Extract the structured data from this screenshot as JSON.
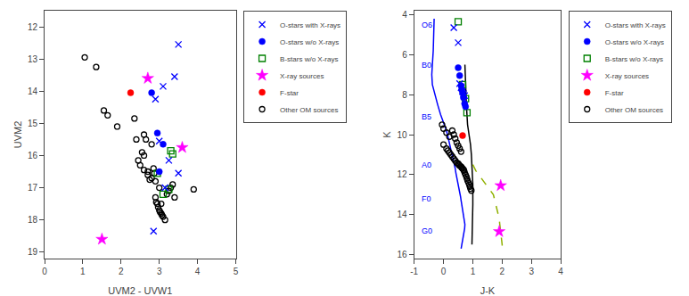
{
  "chart_data": [
    {
      "type": "scatter",
      "xlabel": "UVM2 - UVW1",
      "ylabel": "UVM2",
      "xlim": [
        0,
        5
      ],
      "ylim": [
        19.2,
        11.5
      ],
      "xticks": [
        0,
        1,
        2,
        3,
        4,
        5
      ],
      "yticks": [
        12,
        13,
        14,
        15,
        16,
        17,
        18,
        19
      ],
      "grid": false,
      "legend": "right",
      "series": [
        {
          "name": "O-stars with X-rays",
          "color": "blue",
          "marker": "x",
          "x": [
            3.5,
            3.4,
            3.1,
            2.9,
            3.0,
            3.25,
            3.5,
            3.15,
            2.85
          ],
          "values": [
            12.55,
            13.55,
            13.85,
            14.25,
            15.55,
            16.15,
            16.55,
            17.0,
            18.35
          ]
        },
        {
          "name": "O-stars w/o X-rays",
          "color": "blue",
          "marker": "circle",
          "x": [
            2.8,
            2.95,
            3.1,
            3.0
          ],
          "values": [
            14.05,
            15.3,
            15.65,
            16.5
          ]
        },
        {
          "name": "B-stars w/o X-rays",
          "color": "green",
          "marker": "square-open",
          "x": [
            3.3,
            3.35,
            2.95,
            3.25,
            3.1
          ],
          "values": [
            15.85,
            15.95,
            16.55,
            17.05,
            17.2
          ]
        },
        {
          "name": "X-ray sources",
          "color": "magenta",
          "marker": "star",
          "x": [
            1.5,
            2.7,
            3.6
          ],
          "values": [
            18.6,
            13.6,
            15.75
          ]
        },
        {
          "name": "F-star",
          "color": "red",
          "marker": "circle",
          "x": [
            2.25
          ],
          "values": [
            14.05
          ]
        },
        {
          "name": "Other OM sources",
          "color": "black",
          "marker": "circle-open",
          "x": [
            1.05,
            1.35,
            1.55,
            1.65,
            1.9,
            2.35,
            2.4,
            2.55,
            2.6,
            2.7,
            2.75,
            2.8,
            2.85,
            2.87,
            2.9,
            2.92,
            2.95,
            2.97,
            3.0,
            3.02,
            3.05,
            3.07,
            3.1,
            3.15,
            3.2,
            3.25,
            3.3,
            3.35,
            3.4,
            3.9,
            2.45,
            2.5,
            2.6,
            2.7,
            2.8,
            2.9,
            3.0,
            3.05,
            2.6,
            2.65
          ],
          "values": [
            12.95,
            13.25,
            14.6,
            14.75,
            15.1,
            14.85,
            15.5,
            15.9,
            16.0,
            16.6,
            16.75,
            15.65,
            16.4,
            16.55,
            17.3,
            17.45,
            17.5,
            17.6,
            17.7,
            17.75,
            17.8,
            17.85,
            17.9,
            18.0,
            17.2,
            17.1,
            17.0,
            16.9,
            17.3,
            17.05,
            16.15,
            16.3,
            16.45,
            16.5,
            16.7,
            16.8,
            17.0,
            17.5,
            15.35,
            15.5
          ]
        }
      ]
    },
    {
      "type": "scatter",
      "xlabel": "J-K",
      "ylabel": "K",
      "xlim": [
        -1,
        4
      ],
      "ylim": [
        16.2,
        3.8
      ],
      "xticks": [
        -1,
        0,
        1,
        2,
        3,
        4
      ],
      "yticks": [
        4,
        6,
        8,
        10,
        12,
        14,
        16
      ],
      "grid": false,
      "legend": "right",
      "annotations": [
        {
          "x": -0.82,
          "y": 4.5,
          "text": "O6",
          "color": "blue"
        },
        {
          "x": -0.82,
          "y": 6.5,
          "text": "B0",
          "color": "blue"
        },
        {
          "x": -0.82,
          "y": 9.1,
          "text": "B5",
          "color": "blue"
        },
        {
          "x": -0.82,
          "y": 11.5,
          "text": "A0",
          "color": "blue"
        },
        {
          "x": -0.82,
          "y": 13.2,
          "text": "F0",
          "color": "blue"
        },
        {
          "x": -0.82,
          "y": 14.8,
          "text": "G0",
          "color": "blue"
        }
      ],
      "series": [
        {
          "type": "line",
          "color": "blue",
          "line_style": "solid",
          "x": [
            -0.32,
            -0.33,
            -0.35,
            -0.38,
            -0.4,
            -0.38,
            -0.3,
            -0.2,
            -0.1,
            0.0,
            0.1,
            0.15,
            0.2,
            0.25,
            0.3,
            0.35,
            0.38,
            0.4,
            0.42,
            0.45,
            0.48,
            0.5,
            0.52,
            0.55,
            0.58,
            0.6,
            0.62,
            0.65,
            0.68,
            0.7,
            0.72,
            0.73,
            0.72,
            0.7,
            0.68,
            0.65,
            0.62,
            0.6
          ],
          "values": [
            4.2,
            5.0,
            5.8,
            6.5,
            7.0,
            7.5,
            8.0,
            8.5,
            9.0,
            9.4,
            9.8,
            10.1,
            10.4,
            10.7,
            11.0,
            11.3,
            11.5,
            11.7,
            11.9,
            12.1,
            12.3,
            12.5,
            12.7,
            12.9,
            13.1,
            13.3,
            13.5,
            13.7,
            13.9,
            14.1,
            14.3,
            14.5,
            14.7,
            14.9,
            15.1,
            15.3,
            15.5,
            15.7
          ]
        },
        {
          "type": "line",
          "color": "black",
          "line_style": "solid",
          "x": [
            0.73,
            0.75,
            0.78,
            0.82,
            0.88,
            0.92,
            0.95,
            0.97,
            0.99,
            1.0,
            1.0,
            0.99,
            0.97
          ],
          "values": [
            6.5,
            7.5,
            8.5,
            9.5,
            10.0,
            10.5,
            11.0,
            11.5,
            12.0,
            12.5,
            13.5,
            14.5,
            15.5
          ]
        },
        {
          "type": "line",
          "color": "#90b000",
          "line_style": "dashed",
          "x": [
            1.0,
            1.1,
            1.2,
            1.3,
            1.4,
            1.5,
            1.6,
            1.7,
            1.75,
            1.8,
            1.85,
            1.9,
            1.92,
            1.95,
            1.97,
            1.98,
            2.0,
            2.0
          ],
          "values": [
            11.5,
            11.8,
            12.0,
            12.2,
            12.4,
            12.6,
            12.8,
            13.0,
            13.3,
            13.6,
            13.9,
            14.2,
            14.5,
            14.8,
            15.0,
            15.2,
            15.5,
            15.8
          ]
        },
        {
          "name": "O-stars with X-rays",
          "color": "blue",
          "marker": "x",
          "x": [
            0.35,
            0.5,
            0.55,
            0.6,
            0.65,
            0.68,
            0.72
          ],
          "values": [
            4.65,
            5.4,
            7.45,
            7.65,
            7.85,
            7.95,
            8.05
          ]
        },
        {
          "name": "O-stars w/o X-rays",
          "color": "blue",
          "marker": "circle",
          "x": [
            0.5,
            0.55,
            0.6,
            0.62,
            0.65,
            0.68,
            0.72,
            0.75
          ],
          "values": [
            6.65,
            7.05,
            7.55,
            7.75,
            7.9,
            8.15,
            8.45,
            8.6
          ]
        },
        {
          "name": "B-stars w/o X-rays",
          "color": "green",
          "marker": "square-open",
          "x": [
            0.5,
            0.65,
            0.75,
            0.8
          ],
          "values": [
            4.35,
            7.5,
            8.2,
            8.9
          ]
        },
        {
          "name": "X-ray sources",
          "color": "magenta",
          "marker": "star",
          "x": [
            1.95,
            1.9
          ],
          "values": [
            12.55,
            14.85
          ]
        },
        {
          "name": "F-star",
          "color": "red",
          "marker": "circle",
          "x": [
            0.65
          ],
          "values": [
            10.05
          ]
        },
        {
          "name": "Other OM sources",
          "color": "black",
          "marker": "circle-open",
          "x": [
            -0.05,
            0.0,
            0.1,
            0.15,
            0.2,
            0.25,
            0.3,
            0.35,
            0.4,
            0.45,
            0.5,
            0.52,
            0.55,
            0.6,
            0.62,
            0.65,
            0.68,
            0.7,
            0.72,
            0.75,
            0.78,
            0.8,
            0.82,
            0.85,
            0.88,
            0.9,
            0.92,
            0.95,
            0.3,
            0.35,
            0.4,
            0.45,
            0.5,
            0.55,
            0.6,
            0.0,
            0.1,
            0.2
          ],
          "values": [
            9.5,
            10.5,
            10.7,
            10.8,
            10.9,
            11.0,
            11.1,
            11.2,
            11.3,
            11.4,
            11.45,
            11.5,
            11.55,
            11.6,
            11.65,
            11.7,
            11.75,
            11.8,
            11.9,
            12.0,
            12.1,
            12.2,
            12.3,
            12.4,
            12.5,
            12.6,
            12.7,
            12.8,
            9.8,
            10.0,
            10.2,
            10.4,
            10.55,
            10.7,
            10.85,
            9.7,
            9.9,
            10.1
          ]
        }
      ]
    }
  ]
}
